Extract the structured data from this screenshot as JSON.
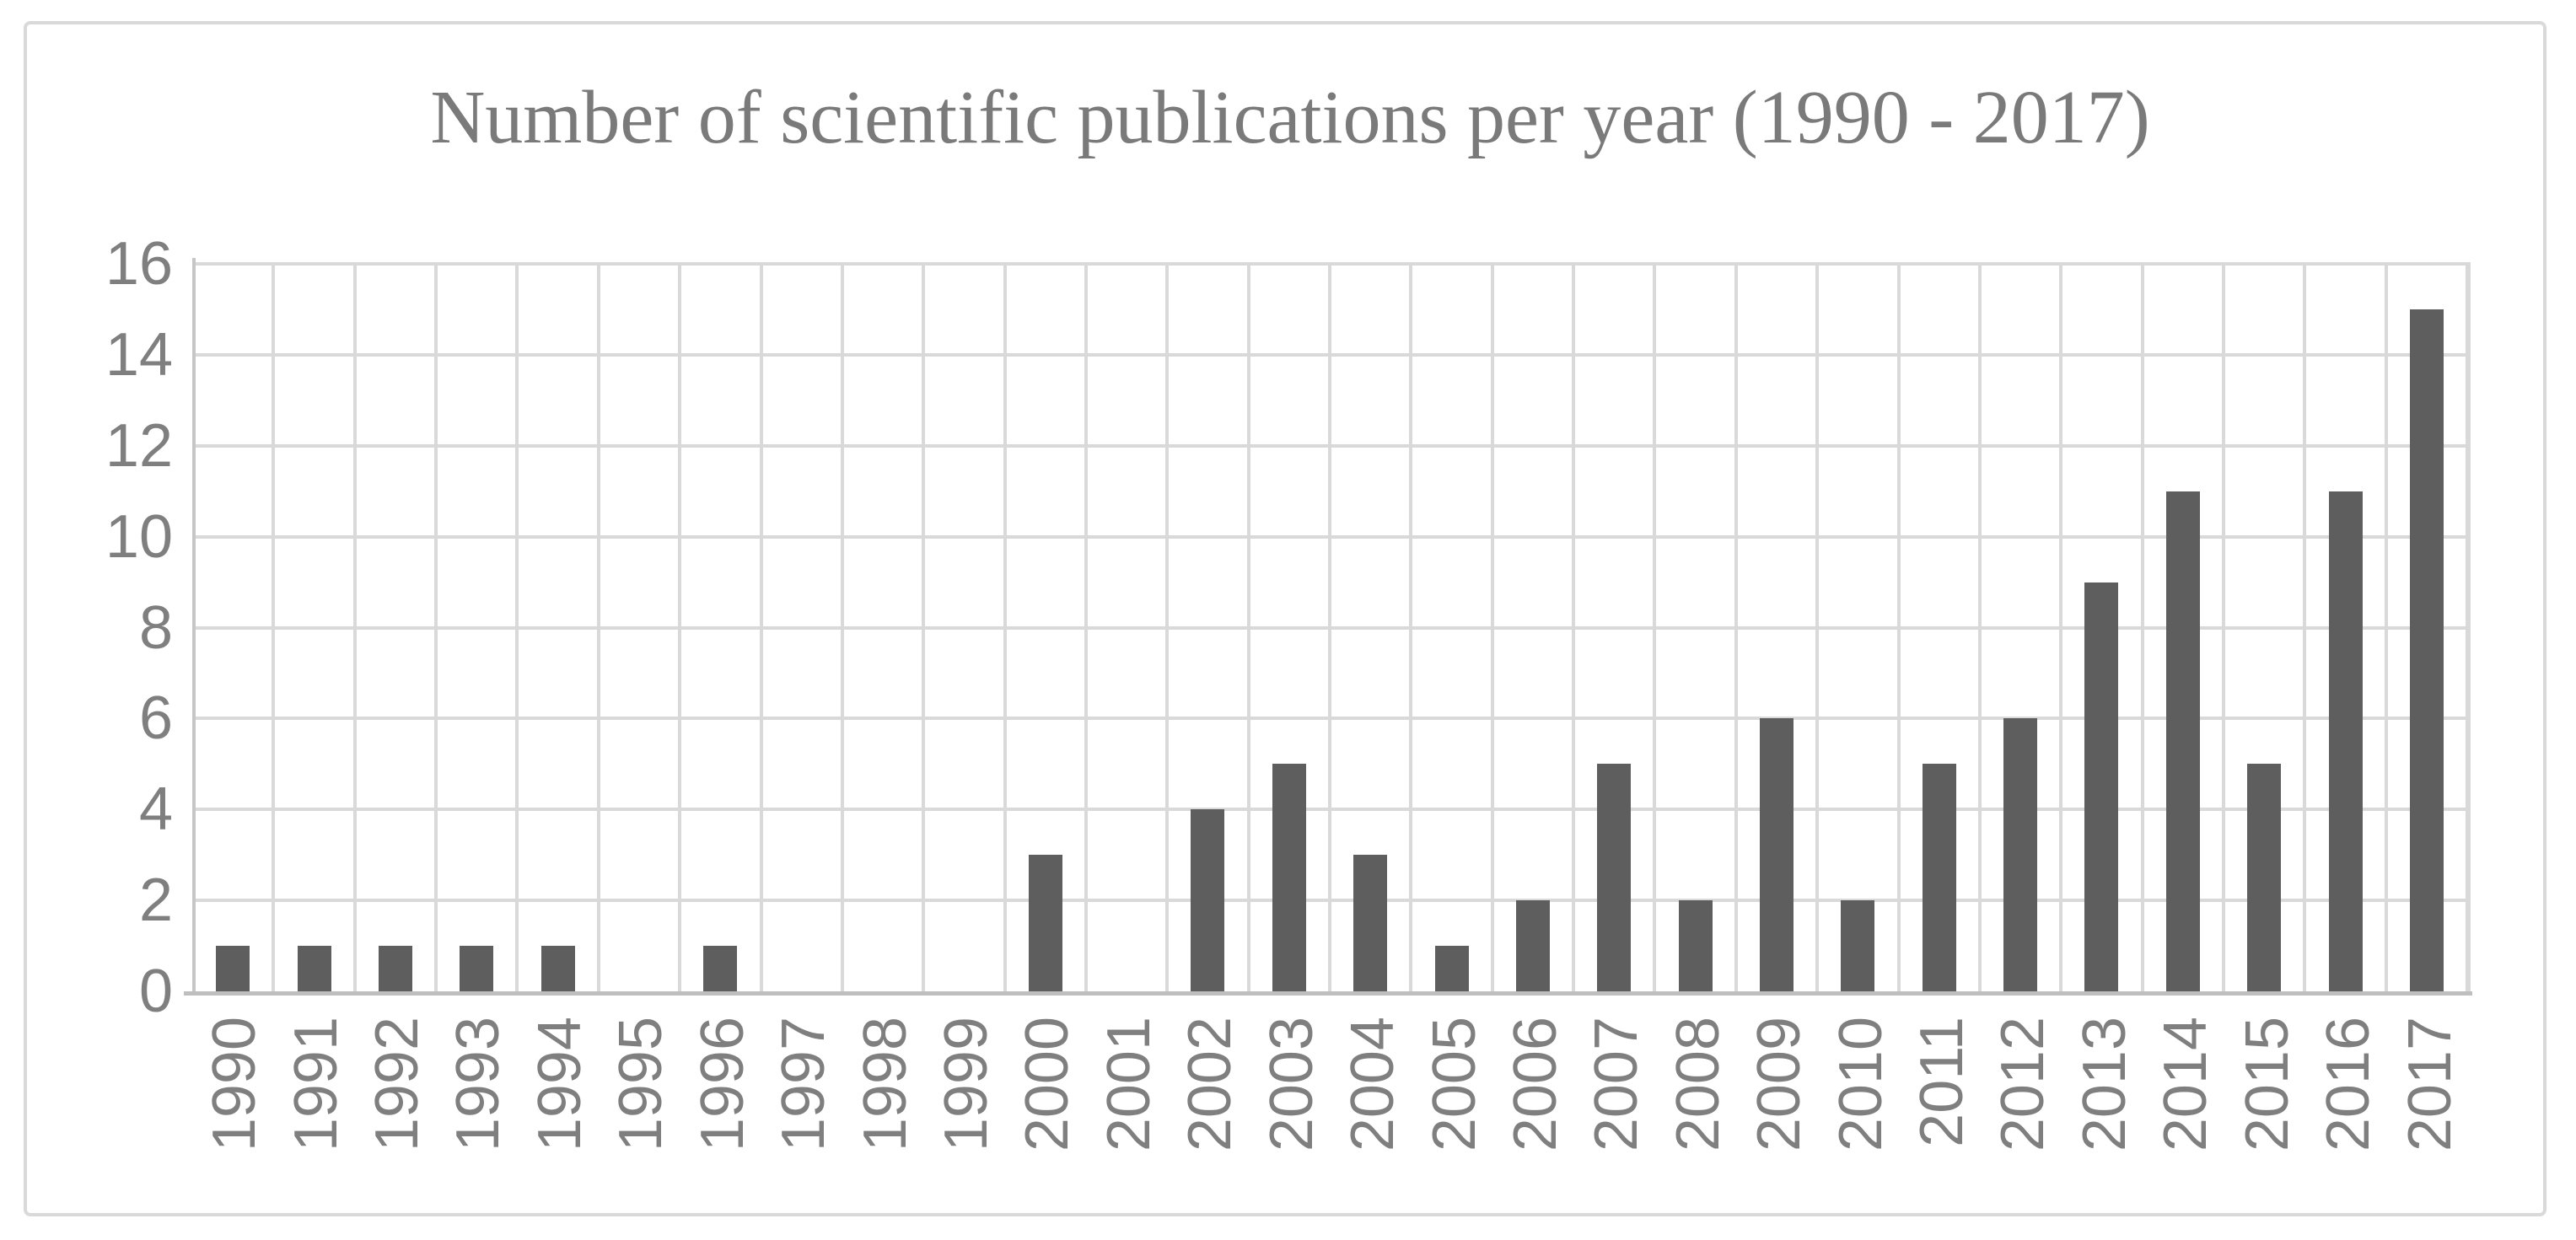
{
  "figure": {
    "background": "#ffffff",
    "border_color": "#d9d9d9"
  },
  "chart_data": {
    "type": "bar",
    "title": "Number of scientific publications per year (1990 - 2017)",
    "categories": [
      "1990",
      "1991",
      "1992",
      "1993",
      "1994",
      "1995",
      "1996",
      "1997",
      "1998",
      "1999",
      "2000",
      "2001",
      "2002",
      "2003",
      "2004",
      "2005",
      "2006",
      "2007",
      "2008",
      "2009",
      "2010",
      "2011",
      "2012",
      "2013",
      "2014",
      "2015",
      "2016",
      "2017"
    ],
    "values": [
      1,
      1,
      1,
      1,
      1,
      0,
      1,
      0,
      0,
      0,
      3,
      0,
      4,
      5,
      3,
      1,
      2,
      5,
      2,
      6,
      2,
      5,
      6,
      9,
      11,
      5,
      11,
      15
    ],
    "xlabel": "",
    "ylabel": "",
    "ylim": [
      0,
      16
    ],
    "yticks": [
      0,
      2,
      4,
      6,
      8,
      10,
      12,
      14,
      16
    ],
    "grid": true,
    "legend": false,
    "colors": {
      "bar": "#5e5e5e",
      "gridline": "#d9d9d9",
      "axis_line": "#bfbfbf",
      "tick_label": "#7f7f7f",
      "title": "#7a7a7a"
    }
  }
}
